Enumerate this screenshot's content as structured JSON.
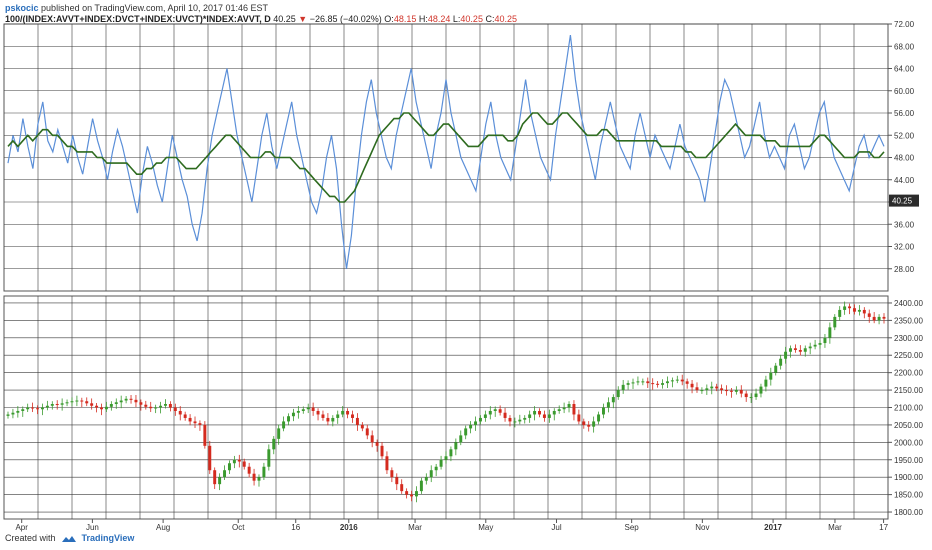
{
  "header": {
    "user": "pskocic",
    "published_text": "published on TradingView.com, April 10, 2017 01:46 EST",
    "symbol": "100/(INDEX:AVVT+INDEX:DVCT+INDEX:UVCT)*INDEX:AVVT, D",
    "last": "40.25",
    "arrow": "▼",
    "change": "−26.85 (−40.02%)",
    "o_label": "O:",
    "o": "48.15",
    "h_label": "H:",
    "h": "48.24",
    "l_label": "L:",
    "l": "40.25",
    "c_label": "C:",
    "c": "40.25"
  },
  "footer": {
    "created_with": "Created with",
    "brand": "TradingView"
  },
  "colors": {
    "blue_line": "#5b8fd8",
    "green_line": "#2e6b1f",
    "up_candle": "#3a9a2e",
    "down_candle": "#d42a1e",
    "background": "#ffffff",
    "grid": "#3a3a3a",
    "price_badge": "#2b2b2b"
  },
  "chart_data": [
    {
      "type": "line",
      "pane": "top",
      "series": [
        {
          "values": [
            47,
            52,
            49,
            55,
            50,
            46,
            54,
            58,
            51,
            49,
            53,
            50,
            47,
            52,
            48,
            45,
            50,
            55,
            51,
            48,
            44,
            49,
            53,
            50,
            46,
            42,
            38,
            45,
            50,
            47,
            43,
            40,
            46,
            52,
            48,
            44,
            41,
            36,
            33,
            38,
            46,
            52,
            56,
            60,
            64,
            58,
            52,
            48,
            44,
            40,
            46,
            52,
            56,
            50,
            46,
            50,
            54,
            58,
            52,
            48,
            44,
            40,
            38,
            42,
            48,
            52,
            46,
            36,
            28,
            34,
            44,
            52,
            58,
            62,
            56,
            52,
            48,
            46,
            52,
            56,
            60,
            64,
            58,
            54,
            50,
            46,
            52,
            56,
            62,
            56,
            52,
            48,
            46,
            44,
            42,
            48,
            54,
            58,
            52,
            48,
            46,
            44,
            50,
            56,
            62,
            56,
            52,
            48,
            46,
            44,
            52,
            58,
            64,
            70,
            62,
            56,
            52,
            48,
            44,
            50,
            54,
            58,
            54,
            50,
            48,
            46,
            52,
            56,
            52,
            48,
            52,
            50,
            48,
            46,
            50,
            54,
            50,
            48,
            46,
            44,
            40,
            46,
            52,
            58,
            62,
            60,
            56,
            52,
            48,
            50,
            54,
            58,
            52,
            48,
            50,
            48,
            46,
            52,
            54,
            50,
            46,
            48,
            52,
            56,
            58,
            52,
            48,
            46,
            44,
            42,
            46,
            50,
            52,
            48,
            50,
            52,
            50
          ]
        },
        {
          "values": [
            50,
            51,
            50,
            51,
            52,
            51,
            52,
            53,
            53,
            52,
            52,
            51,
            50,
            50,
            49,
            49,
            49,
            49,
            48,
            48,
            47,
            47,
            47,
            47,
            47,
            46,
            45,
            45,
            46,
            46,
            47,
            47,
            48,
            48,
            48,
            47,
            46,
            46,
            46,
            47,
            48,
            49,
            50,
            51,
            52,
            52,
            51,
            50,
            49,
            48,
            48,
            48,
            49,
            49,
            48,
            48,
            48,
            48,
            47,
            46,
            46,
            45,
            44,
            43,
            42,
            41,
            41,
            40,
            40,
            41,
            42,
            44,
            46,
            48,
            50,
            52,
            53,
            54,
            55,
            55,
            56,
            56,
            55,
            54,
            53,
            52,
            52,
            53,
            54,
            54,
            53,
            52,
            51,
            50,
            50,
            50,
            51,
            52,
            52,
            52,
            52,
            51,
            51,
            52,
            54,
            55,
            56,
            56,
            55,
            54,
            54,
            55,
            56,
            56,
            55,
            54,
            53,
            52,
            52,
            52,
            53,
            53,
            52,
            51,
            51,
            51,
            51,
            51,
            51,
            51,
            51,
            51,
            50,
            50,
            50,
            50,
            50,
            49,
            49,
            48,
            48,
            48,
            49,
            50,
            51,
            52,
            53,
            54,
            53,
            52,
            52,
            52,
            52,
            51,
            51,
            51,
            50,
            50,
            50,
            50,
            50,
            50,
            50,
            51,
            52,
            52,
            51,
            50,
            49,
            48,
            48,
            48,
            49,
            49,
            49,
            48,
            48,
            49
          ]
        }
      ],
      "ylim": [
        24,
        72
      ],
      "yticks": [
        "72.00",
        "68.00",
        "64.00",
        "60.00",
        "56.00",
        "52.00",
        "48.00",
        "44.00",
        "40.00",
        "36.00",
        "32.00",
        "28.00"
      ],
      "last_value": "40.25"
    },
    {
      "type": "candlestick",
      "pane": "bottom",
      "x_labels": [
        "Apr",
        "Jun",
        "Aug",
        "Oct",
        "16",
        "2016",
        "Mar",
        "May",
        "Jul",
        "Sep",
        "Nov",
        "2017",
        "Mar",
        "17"
      ],
      "close": [
        2080,
        2085,
        2090,
        2095,
        2100,
        2098,
        2095,
        2100,
        2105,
        2110,
        2108,
        2112,
        2115,
        2118,
        2120,
        2118,
        2112,
        2105,
        2100,
        2095,
        2102,
        2110,
        2115,
        2120,
        2125,
        2122,
        2115,
        2108,
        2102,
        2098,
        2100,
        2105,
        2110,
        2100,
        2090,
        2080,
        2070,
        2060,
        2055,
        2050,
        1990,
        1920,
        1880,
        1900,
        1920,
        1940,
        1950,
        1945,
        1930,
        1910,
        1890,
        1900,
        1930,
        1980,
        2010,
        2040,
        2060,
        2075,
        2085,
        2090,
        2095,
        2100,
        2090,
        2080,
        2070,
        2060,
        2070,
        2080,
        2090,
        2080,
        2070,
        2050,
        2040,
        2020,
        2000,
        1990,
        1960,
        1920,
        1900,
        1880,
        1860,
        1850,
        1845,
        1860,
        1890,
        1900,
        1920,
        1930,
        1950,
        1960,
        1980,
        2000,
        2020,
        2040,
        2050,
        2060,
        2070,
        2080,
        2090,
        2095,
        2085,
        2070,
        2060,
        2060,
        2065,
        2070,
        2080,
        2090,
        2080,
        2070,
        2080,
        2090,
        2095,
        2100,
        2110,
        2080,
        2060,
        2050,
        2045,
        2060,
        2080,
        2100,
        2115,
        2130,
        2150,
        2165,
        2170,
        2172,
        2175,
        2175,
        2170,
        2168,
        2165,
        2170,
        2175,
        2178,
        2180,
        2175,
        2168,
        2158,
        2150,
        2150,
        2155,
        2160,
        2155,
        2150,
        2148,
        2145,
        2150,
        2140,
        2130,
        2130,
        2140,
        2160,
        2180,
        2200,
        2220,
        2240,
        2260,
        2270,
        2265,
        2260,
        2270,
        2275,
        2280,
        2285,
        2300,
        2330,
        2360,
        2380,
        2390,
        2385,
        2375,
        2380,
        2370,
        2360,
        2350,
        2360,
        2355
      ],
      "ylim": [
        1780,
        2420
      ],
      "yticks": [
        "2400.00",
        "2350.00",
        "2300.00",
        "2250.00",
        "2200.00",
        "2150.00",
        "2100.00",
        "2050.00",
        "2000.00",
        "1950.00",
        "1900.00",
        "1850.00",
        "1800.00"
      ]
    }
  ]
}
